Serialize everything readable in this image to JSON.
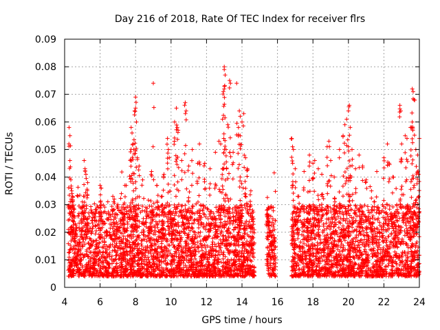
{
  "chart_data": {
    "type": "scatter",
    "title": "Day 216 of 2018, Rate Of TEC Index for receiver flrs",
    "xlabel": "GPS time / hours",
    "ylabel": "ROTI / TECUs",
    "xlim": [
      4,
      24
    ],
    "ylim": [
      0,
      0.09
    ],
    "xticks": [
      4,
      6,
      8,
      10,
      12,
      14,
      16,
      18,
      20,
      22,
      24
    ],
    "yticks": [
      0,
      0.01,
      0.02,
      0.03,
      0.04,
      0.05,
      0.06,
      0.07,
      0.08,
      0.09
    ],
    "xtick_labels": [
      "4",
      "6",
      "8",
      "10",
      "12",
      "14",
      "16",
      "18",
      "20",
      "22",
      "24"
    ],
    "ytick_labels": [
      "0",
      "0.01",
      "0.02",
      "0.03",
      "0.04",
      "0.05",
      "0.06",
      "0.07",
      "0.08",
      "0.09"
    ],
    "grid": true,
    "marker": "+",
    "color": "#ff0000",
    "series": [
      {
        "name": "ROTI",
        "segments": [
          {
            "start": 4.2,
            "end": 14.7
          },
          {
            "start": 15.4,
            "end": 15.9
          },
          {
            "start": 16.8,
            "end": 24.0
          }
        ],
        "points": [
          [
            4.25,
            0.058
          ],
          [
            4.3,
            0.055
          ],
          [
            4.3,
            0.046
          ],
          [
            4.35,
            0.039
          ],
          [
            4.4,
            0.035
          ],
          [
            4.45,
            0.033
          ],
          [
            4.5,
            0.026
          ],
          [
            5.1,
            0.046
          ],
          [
            5.15,
            0.043
          ],
          [
            5.2,
            0.041
          ],
          [
            5.3,
            0.038
          ],
          [
            5.0,
            0.031
          ],
          [
            6.0,
            0.037
          ],
          [
            6.05,
            0.036
          ],
          [
            6.8,
            0.032
          ],
          [
            7.0,
            0.03
          ],
          [
            7.2,
            0.034
          ],
          [
            7.4,
            0.037
          ],
          [
            7.7,
            0.046
          ],
          [
            7.75,
            0.058
          ],
          [
            7.8,
            0.056
          ],
          [
            7.85,
            0.052
          ],
          [
            7.9,
            0.05
          ],
          [
            8.0,
            0.069
          ],
          [
            8.0,
            0.065
          ],
          [
            7.95,
            0.064
          ],
          [
            8.05,
            0.06
          ],
          [
            8.1,
            0.047
          ],
          [
            8.2,
            0.044
          ],
          [
            8.4,
            0.039
          ],
          [
            9.0,
            0.074
          ],
          [
            8.9,
            0.042
          ],
          [
            9.2,
            0.037
          ],
          [
            9.5,
            0.033
          ],
          [
            9.6,
            0.041
          ],
          [
            9.8,
            0.054
          ],
          [
            9.85,
            0.05
          ],
          [
            9.9,
            0.047
          ],
          [
            10.2,
            0.06
          ],
          [
            10.3,
            0.065
          ],
          [
            10.35,
            0.058
          ],
          [
            10.4,
            0.057
          ],
          [
            10.8,
            0.067
          ],
          [
            10.85,
            0.064
          ],
          [
            10.6,
            0.046
          ],
          [
            11.0,
            0.044
          ],
          [
            11.2,
            0.05
          ],
          [
            11.5,
            0.045
          ],
          [
            11.6,
            0.052
          ],
          [
            11.9,
            0.045
          ],
          [
            12.2,
            0.043
          ],
          [
            12.5,
            0.049
          ],
          [
            12.7,
            0.053
          ],
          [
            12.8,
            0.052
          ],
          [
            12.9,
            0.061
          ],
          [
            13.0,
            0.08
          ],
          [
            13.0,
            0.079
          ],
          [
            13.05,
            0.077
          ],
          [
            13.0,
            0.072
          ],
          [
            12.95,
            0.071
          ],
          [
            13.3,
            0.075
          ],
          [
            13.35,
            0.074
          ],
          [
            13.2,
            0.059
          ],
          [
            13.1,
            0.05
          ],
          [
            13.5,
            0.049
          ],
          [
            13.7,
            0.074
          ],
          [
            13.85,
            0.064
          ],
          [
            13.9,
            0.062
          ],
          [
            14.0,
            0.06
          ],
          [
            14.1,
            0.063
          ],
          [
            13.8,
            0.058
          ],
          [
            13.9,
            0.055
          ],
          [
            14.2,
            0.047
          ],
          [
            14.3,
            0.043
          ],
          [
            14.5,
            0.035
          ],
          [
            14.6,
            0.028
          ],
          [
            15.4,
            0.028
          ],
          [
            15.5,
            0.026
          ],
          [
            15.6,
            0.02
          ],
          [
            15.7,
            0.015
          ],
          [
            15.8,
            0.01
          ],
          [
            16.8,
            0.054
          ],
          [
            16.85,
            0.051
          ],
          [
            16.9,
            0.05
          ],
          [
            17.0,
            0.043
          ],
          [
            17.2,
            0.033
          ],
          [
            17.5,
            0.042
          ],
          [
            17.8,
            0.048
          ],
          [
            18.0,
            0.045
          ],
          [
            18.1,
            0.046
          ],
          [
            18.3,
            0.043
          ],
          [
            18.5,
            0.041
          ],
          [
            18.8,
            0.051
          ],
          [
            18.9,
            0.053
          ],
          [
            19.0,
            0.046
          ],
          [
            19.2,
            0.04
          ],
          [
            19.5,
            0.05
          ],
          [
            19.7,
            0.055
          ],
          [
            19.8,
            0.059
          ],
          [
            19.9,
            0.061
          ],
          [
            20.0,
            0.064
          ],
          [
            20.05,
            0.066
          ],
          [
            20.1,
            0.058
          ],
          [
            20.0,
            0.051
          ],
          [
            20.2,
            0.05
          ],
          [
            20.4,
            0.043
          ],
          [
            20.6,
            0.048
          ],
          [
            20.8,
            0.044
          ],
          [
            21.0,
            0.039
          ],
          [
            21.3,
            0.035
          ],
          [
            21.6,
            0.042
          ],
          [
            22.0,
            0.047
          ],
          [
            22.2,
            0.052
          ],
          [
            22.3,
            0.045
          ],
          [
            22.5,
            0.04
          ],
          [
            22.9,
            0.066
          ],
          [
            22.95,
            0.064
          ],
          [
            23.0,
            0.052
          ],
          [
            23.2,
            0.055
          ],
          [
            23.3,
            0.054
          ],
          [
            23.5,
            0.058
          ],
          [
            23.6,
            0.072
          ],
          [
            23.65,
            0.071
          ],
          [
            23.7,
            0.068
          ],
          [
            23.6,
            0.06
          ],
          [
            23.55,
            0.058
          ],
          [
            23.8,
            0.05
          ],
          [
            23.9,
            0.048
          ],
          [
            24.0,
            0.054
          ],
          [
            23.95,
            0.041
          ]
        ],
        "typical_range": [
          0.004,
          0.03
        ],
        "typical_median": 0.011
      }
    ]
  }
}
